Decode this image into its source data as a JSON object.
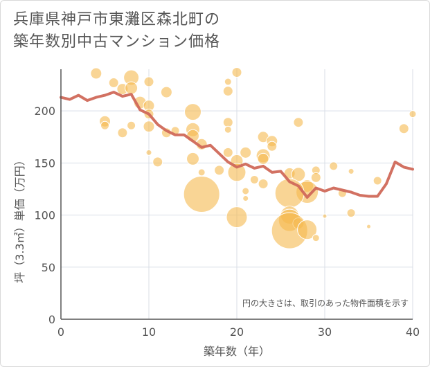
{
  "chart_title_line1": "兵庫県神戸市東灘区森北町の",
  "chart_title_line2": "築年数別中古マンション価格",
  "colors": {
    "bubble": "#f5b94f",
    "line": "#d0695a",
    "grid": "#d8dee6",
    "axis": "#555555"
  },
  "chart_data": {
    "type": "scatter",
    "xlabel": "築年数（年）",
    "ylabel": "坪（3.3㎡）単価（万円）",
    "xlim": [
      0,
      40
    ],
    "ylim": [
      0,
      240
    ],
    "x_ticks": [
      0,
      10,
      20,
      30,
      40
    ],
    "y_ticks": [
      0,
      50,
      100,
      150,
      200
    ],
    "grid": true,
    "annotation": "円の大きさは、取引のあった物件面積を示す",
    "bubbles": [
      {
        "x": 4,
        "y": 236,
        "r": 8
      },
      {
        "x": 6,
        "y": 227,
        "r": 7
      },
      {
        "x": 7,
        "y": 221,
        "r": 8
      },
      {
        "x": 8,
        "y": 232,
        "r": 11
      },
      {
        "x": 8,
        "y": 222,
        "r": 9
      },
      {
        "x": 9,
        "y": 208,
        "r": 9
      },
      {
        "x": 10,
        "y": 228,
        "r": 7
      },
      {
        "x": 10,
        "y": 205,
        "r": 8
      },
      {
        "x": 10,
        "y": 197,
        "r": 7
      },
      {
        "x": 12,
        "y": 218,
        "r": 8
      },
      {
        "x": 5,
        "y": 190,
        "r": 8
      },
      {
        "x": 5,
        "y": 186,
        "r": 6
      },
      {
        "x": 7,
        "y": 179,
        "r": 7
      },
      {
        "x": 8,
        "y": 186,
        "r": 6
      },
      {
        "x": 10,
        "y": 185,
        "r": 8
      },
      {
        "x": 12,
        "y": 179,
        "r": 7
      },
      {
        "x": 13,
        "y": 181,
        "r": 6
      },
      {
        "x": 15,
        "y": 199,
        "r": 12
      },
      {
        "x": 15,
        "y": 182,
        "r": 10
      },
      {
        "x": 15,
        "y": 176,
        "r": 9
      },
      {
        "x": 16,
        "y": 168,
        "r": 8
      },
      {
        "x": 10,
        "y": 160,
        "r": 4
      },
      {
        "x": 11,
        "y": 151,
        "r": 7
      },
      {
        "x": 15,
        "y": 154,
        "r": 9
      },
      {
        "x": 16,
        "y": 141,
        "r": 5
      },
      {
        "x": 16,
        "y": 120,
        "r": 26
      },
      {
        "x": 20,
        "y": 237,
        "r": 7
      },
      {
        "x": 19,
        "y": 228,
        "r": 5
      },
      {
        "x": 19,
        "y": 219,
        "r": 7
      },
      {
        "x": 19,
        "y": 189,
        "r": 7
      },
      {
        "x": 19,
        "y": 182,
        "r": 5
      },
      {
        "x": 19,
        "y": 160,
        "r": 7
      },
      {
        "x": 20,
        "y": 152,
        "r": 9
      },
      {
        "x": 20,
        "y": 141,
        "r": 13
      },
      {
        "x": 21,
        "y": 160,
        "r": 8
      },
      {
        "x": 18,
        "y": 143,
        "r": 7
      },
      {
        "x": 21,
        "y": 123,
        "r": 5
      },
      {
        "x": 21,
        "y": 116,
        "r": 4
      },
      {
        "x": 22,
        "y": 134,
        "r": 6
      },
      {
        "x": 20,
        "y": 98,
        "r": 15
      },
      {
        "x": 23,
        "y": 175,
        "r": 8
      },
      {
        "x": 24,
        "y": 171,
        "r": 8
      },
      {
        "x": 24,
        "y": 166,
        "r": 7
      },
      {
        "x": 23,
        "y": 157,
        "r": 10
      },
      {
        "x": 23,
        "y": 154,
        "r": 8
      },
      {
        "x": 23,
        "y": 130,
        "r": 7
      },
      {
        "x": 26,
        "y": 140,
        "r": 8
      },
      {
        "x": 27,
        "y": 189,
        "r": 7
      },
      {
        "x": 27,
        "y": 139,
        "r": 10
      },
      {
        "x": 28,
        "y": 128,
        "r": 9
      },
      {
        "x": 28,
        "y": 122,
        "r": 16
      },
      {
        "x": 26,
        "y": 121,
        "r": 21
      },
      {
        "x": 26,
        "y": 100,
        "r": 13
      },
      {
        "x": 26,
        "y": 95,
        "r": 16
      },
      {
        "x": 27,
        "y": 92,
        "r": 8
      },
      {
        "x": 26,
        "y": 85,
        "r": 26
      },
      {
        "x": 28,
        "y": 86,
        "r": 14
      },
      {
        "x": 29,
        "y": 143,
        "r": 6
      },
      {
        "x": 29,
        "y": 136,
        "r": 7
      },
      {
        "x": 29,
        "y": 78,
        "r": 5
      },
      {
        "x": 30,
        "y": 99,
        "r": 3
      },
      {
        "x": 31,
        "y": 147,
        "r": 6
      },
      {
        "x": 32,
        "y": 121,
        "r": 6
      },
      {
        "x": 33,
        "y": 142,
        "r": 4
      },
      {
        "x": 33,
        "y": 102,
        "r": 6
      },
      {
        "x": 35,
        "y": 89,
        "r": 3
      },
      {
        "x": 36,
        "y": 133,
        "r": 6
      },
      {
        "x": 39,
        "y": 183,
        "r": 7
      },
      {
        "x": 40,
        "y": 197,
        "r": 5
      }
    ],
    "series": [
      {
        "x": [
          0,
          1,
          2,
          3,
          4,
          5,
          6,
          7,
          8,
          9,
          10,
          11,
          12,
          13,
          14,
          15,
          16,
          17,
          18,
          19,
          20,
          21,
          22,
          23,
          24,
          25,
          26,
          27,
          28,
          29,
          30,
          31,
          32,
          33,
          34,
          35,
          36,
          37,
          38,
          39,
          40
        ],
        "values": [
          213,
          211,
          215,
          210,
          213,
          215,
          218,
          214,
          216,
          201,
          197,
          187,
          181,
          177,
          177,
          171,
          165,
          167,
          159,
          151,
          146,
          149,
          145,
          147,
          141,
          142,
          132,
          128,
          117,
          126,
          123,
          126,
          124,
          122,
          119,
          118,
          118,
          130,
          151,
          146,
          144
        ]
      }
    ]
  }
}
